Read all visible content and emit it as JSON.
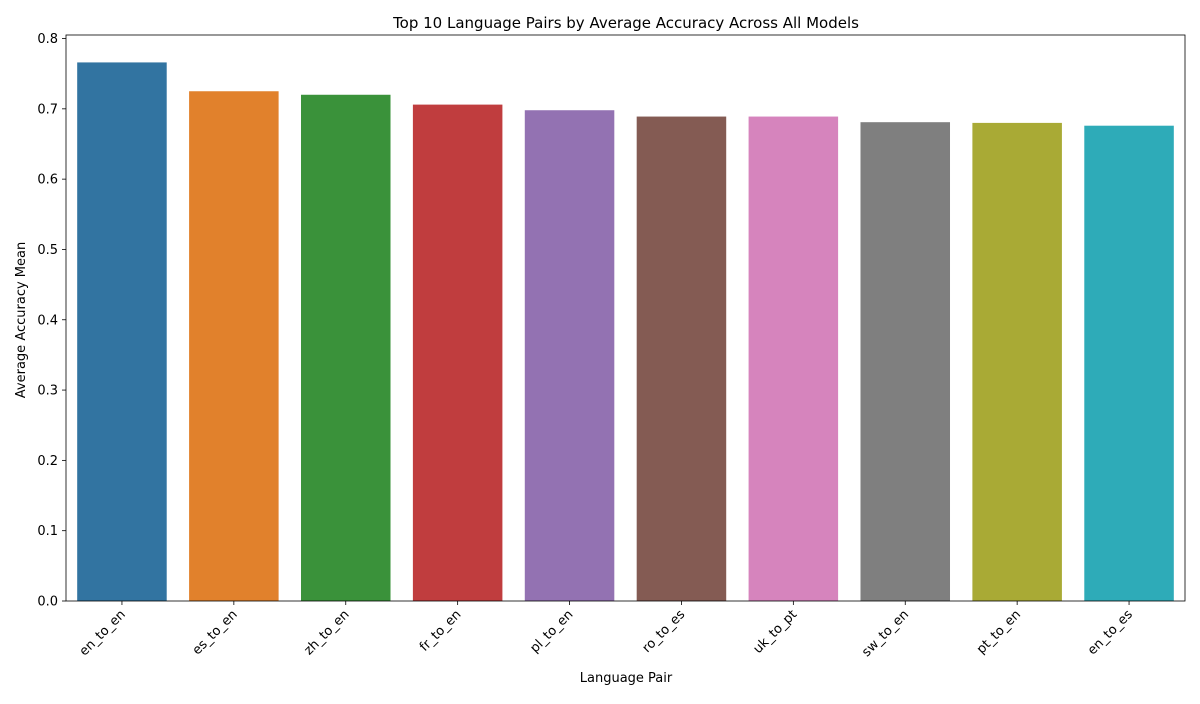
{
  "chart_data": {
    "type": "bar",
    "title": "Top 10 Language Pairs by Average Accuracy Across All Models",
    "xlabel": "Language Pair",
    "ylabel": "Average Accuracy Mean",
    "categories": [
      "en_to_en",
      "es_to_en",
      "zh_to_en",
      "fr_to_en",
      "pl_to_en",
      "ro_to_es",
      "uk_to_pt",
      "sw_to_en",
      "pt_to_en",
      "en_to_es"
    ],
    "values": [
      0.766,
      0.725,
      0.72,
      0.706,
      0.698,
      0.689,
      0.689,
      0.681,
      0.68,
      0.676
    ],
    "colors": [
      "#3274a1",
      "#e1812c",
      "#3a923a",
      "#c03d3e",
      "#9372b2",
      "#845b53",
      "#d684bd",
      "#7f7f7f",
      "#a9aa35",
      "#2eabb8"
    ],
    "ylim": [
      0,
      0.805
    ],
    "yticks": [
      "0.0",
      "0.1",
      "0.2",
      "0.3",
      "0.4",
      "0.5",
      "0.6",
      "0.7",
      "0.8"
    ],
    "grid": false,
    "legend": "none"
  }
}
